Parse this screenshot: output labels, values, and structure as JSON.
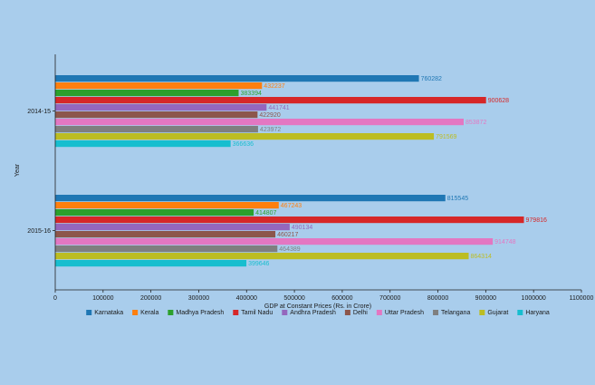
{
  "chart_data": {
    "type": "bar",
    "orientation": "horizontal",
    "title": "",
    "xlabel": "GDP at Constant Prices (Rs. in Crore)",
    "ylabel": "Year",
    "xlim": [
      0,
      1100000
    ],
    "x_ticks": [
      0,
      100000,
      200000,
      300000,
      400000,
      500000,
      600000,
      700000,
      800000,
      900000,
      1000000,
      1100000
    ],
    "grid": false,
    "legend_position": "bottom",
    "categories": [
      "2014-15",
      "2015-16"
    ],
    "series": [
      {
        "name": "Karnataka",
        "color": "#1f77b4",
        "values": [
          760282,
          815545
        ]
      },
      {
        "name": "Kerala",
        "color": "#ff7f0e",
        "values": [
          432237,
          467243
        ]
      },
      {
        "name": "Madhya Pradesh",
        "color": "#2ca02c",
        "values": [
          383394,
          414807
        ]
      },
      {
        "name": "Tamil Nadu",
        "color": "#d62728",
        "values": [
          900628,
          979816
        ]
      },
      {
        "name": "Andhra Pradesh",
        "color": "#9467bd",
        "values": [
          441741,
          490134
        ]
      },
      {
        "name": "Delhi",
        "color": "#8c564b",
        "values": [
          422920,
          460217
        ]
      },
      {
        "name": "Uttar Pradesh",
        "color": "#e377c2",
        "values": [
          853872,
          914748
        ]
      },
      {
        "name": "Telangana",
        "color": "#7f7f7f",
        "values": [
          423972,
          464389
        ]
      },
      {
        "name": "Gujarat",
        "color": "#bcbd22",
        "values": [
          791569,
          864314
        ]
      },
      {
        "name": "Haryana",
        "color": "#17becf",
        "values": [
          366636,
          399646
        ]
      }
    ]
  }
}
